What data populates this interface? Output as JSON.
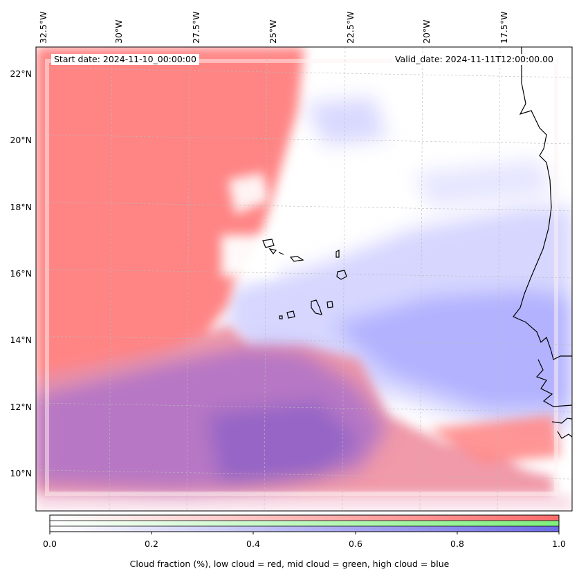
{
  "map": {
    "start_label": "Start date: 2024-11-10_00:00:00",
    "valid_label": "Valid_date: 2024-11-11T12:00:00.00",
    "lon_labels": [
      "32.5°W",
      "30°W",
      "27.5°W",
      "25°W",
      "22.5°W",
      "20°W",
      "17.5°W"
    ],
    "lat_labels": [
      "22°N",
      "20°N",
      "18°N",
      "16°N",
      "14°N",
      "12°N",
      "10°N"
    ],
    "layers": [
      "low cloud",
      "mid cloud",
      "high cloud"
    ]
  },
  "colorbar": {
    "ticks": [
      "0.0",
      "0.2",
      "0.4",
      "0.6",
      "0.8",
      "1.0"
    ],
    "caption": "Cloud fraction (%), low cloud = red, mid cloud = green, high cloud = blue",
    "colors": {
      "low": "#ff7a7a",
      "mid": "#80ee80",
      "high": "#7a7aee"
    }
  }
}
